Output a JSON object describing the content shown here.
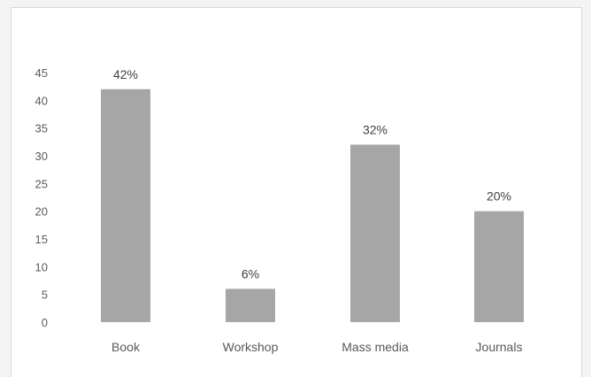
{
  "chart_data": {
    "type": "bar",
    "title": "",
    "xlabel": "",
    "ylabel": "",
    "categories": [
      "Book",
      "Workshop",
      "Mass media",
      "Journals"
    ],
    "values": [
      42,
      6,
      32,
      20
    ],
    "data_labels": [
      "42%",
      "6%",
      "32%",
      "20%"
    ],
    "ylim": [
      0,
      45
    ],
    "yticks": [
      "0",
      "5",
      "10",
      "15",
      "20",
      "25",
      "30",
      "35",
      "40",
      "45"
    ],
    "bar_color": "#a6a6a6",
    "grid": false,
    "legend": "none"
  }
}
